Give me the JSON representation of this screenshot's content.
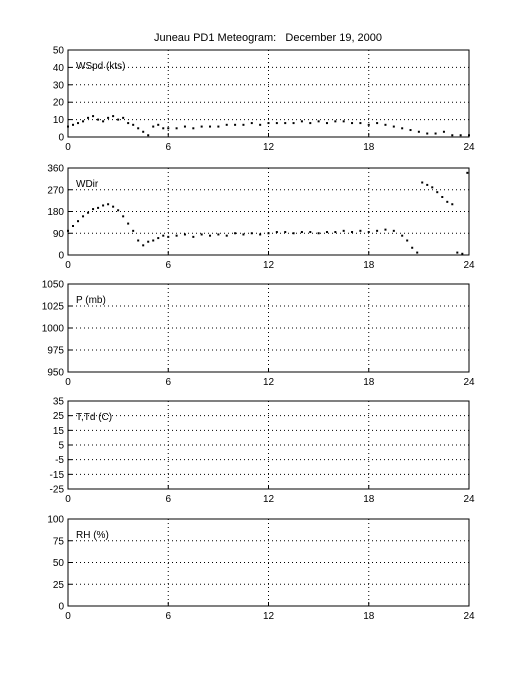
{
  "figure": {
    "title": "Juneau PD1 Meteogram:   December 19, 2000"
  },
  "chart_data": [
    {
      "type": "scatter",
      "panel_label": "WSpd (kts)",
      "x_ticks": [
        0,
        6,
        12,
        18,
        24
      ],
      "xlim": [
        0,
        24
      ],
      "ylim": [
        0,
        50
      ],
      "y_ticks": [
        0,
        10,
        20,
        30,
        40,
        50
      ],
      "grid": true,
      "series": [
        {
          "x": [
            0.0,
            0.3,
            0.6,
            0.9,
            1.2,
            1.5,
            1.8,
            2.1,
            2.4,
            2.7,
            3.0,
            3.3,
            3.6,
            3.9,
            4.2,
            4.5,
            4.8,
            5.1,
            5.4,
            5.7,
            6.0,
            6.5,
            7.0,
            7.5,
            8.0,
            8.5,
            9.0,
            9.5,
            10.0,
            10.5,
            11.0,
            11.5,
            12.0,
            12.5,
            13.0,
            13.5,
            14.0,
            14.5,
            15.0,
            15.5,
            16.0,
            16.5,
            17.0,
            17.5,
            18.0,
            18.5,
            19.0,
            19.5,
            20.0,
            20.5,
            21.0,
            21.5,
            22.0,
            22.5,
            23.0,
            23.5,
            24.0
          ],
          "y": [
            6,
            7,
            8,
            9,
            11,
            12,
            10,
            9,
            11,
            12,
            10,
            11,
            8,
            7,
            5,
            3,
            1,
            6,
            7,
            5,
            5,
            5,
            6,
            5,
            6,
            6,
            6,
            7,
            7,
            7,
            8,
            7,
            8,
            8,
            8,
            8,
            9,
            8,
            9,
            8,
            9,
            9,
            8,
            8,
            7,
            8,
            7,
            6,
            5,
            4,
            3,
            2,
            2,
            3,
            1,
            1,
            1
          ]
        }
      ]
    },
    {
      "type": "scatter",
      "panel_label": "WDir",
      "x_ticks": [
        0,
        6,
        12,
        18,
        24
      ],
      "xlim": [
        0,
        24
      ],
      "ylim": [
        0,
        360
      ],
      "y_ticks": [
        0,
        90,
        180,
        270,
        360
      ],
      "grid": true,
      "series": [
        {
          "x": [
            0.0,
            0.3,
            0.6,
            0.9,
            1.2,
            1.5,
            1.8,
            2.1,
            2.4,
            2.7,
            3.0,
            3.3,
            3.6,
            3.9,
            4.2,
            4.5,
            4.8,
            5.1,
            5.4,
            5.7,
            6.0,
            6.5,
            7.0,
            7.5,
            8.0,
            8.5,
            9.0,
            9.5,
            10.0,
            10.5,
            11.0,
            11.5,
            12.0,
            12.5,
            13.0,
            13.5,
            14.0,
            14.5,
            15.0,
            15.5,
            16.0,
            16.5,
            17.0,
            17.5,
            18.0,
            18.5,
            19.0,
            19.5,
            20.0,
            20.3,
            20.6,
            20.9,
            21.2,
            21.5,
            21.8,
            22.1,
            22.4,
            22.7,
            23.0,
            23.3,
            23.6,
            23.9
          ],
          "y": [
            100,
            120,
            140,
            160,
            175,
            190,
            195,
            205,
            210,
            200,
            185,
            160,
            130,
            100,
            60,
            40,
            55,
            60,
            70,
            80,
            75,
            80,
            85,
            75,
            85,
            80,
            85,
            80,
            90,
            85,
            90,
            85,
            90,
            95,
            95,
            90,
            95,
            95,
            90,
            95,
            95,
            100,
            95,
            100,
            95,
            100,
            105,
            100,
            80,
            60,
            30,
            10,
            300,
            290,
            280,
            260,
            240,
            220,
            210,
            10,
            5,
            340
          ]
        }
      ]
    },
    {
      "type": "scatter",
      "panel_label": "P (mb)",
      "x_ticks": [
        0,
        6,
        12,
        18,
        24
      ],
      "xlim": [
        0,
        24
      ],
      "ylim": [
        950,
        1050
      ],
      "y_ticks": [
        950,
        975,
        1000,
        1025,
        1050
      ],
      "grid": true,
      "series": []
    },
    {
      "type": "scatter",
      "panel_label": "T,Td (C)",
      "x_ticks": [
        0,
        6,
        12,
        18,
        24
      ],
      "xlim": [
        0,
        24
      ],
      "ylim": [
        -25,
        35
      ],
      "y_ticks": [
        -25,
        -15,
        -5,
        5,
        15,
        25,
        35
      ],
      "grid": true,
      "series": []
    },
    {
      "type": "scatter",
      "panel_label": "RH (%)",
      "x_ticks": [
        0,
        6,
        12,
        18,
        24
      ],
      "xlim": [
        0,
        24
      ],
      "ylim": [
        0,
        100
      ],
      "y_ticks": [
        0,
        25,
        50,
        75,
        100
      ],
      "grid": true,
      "series": []
    }
  ]
}
